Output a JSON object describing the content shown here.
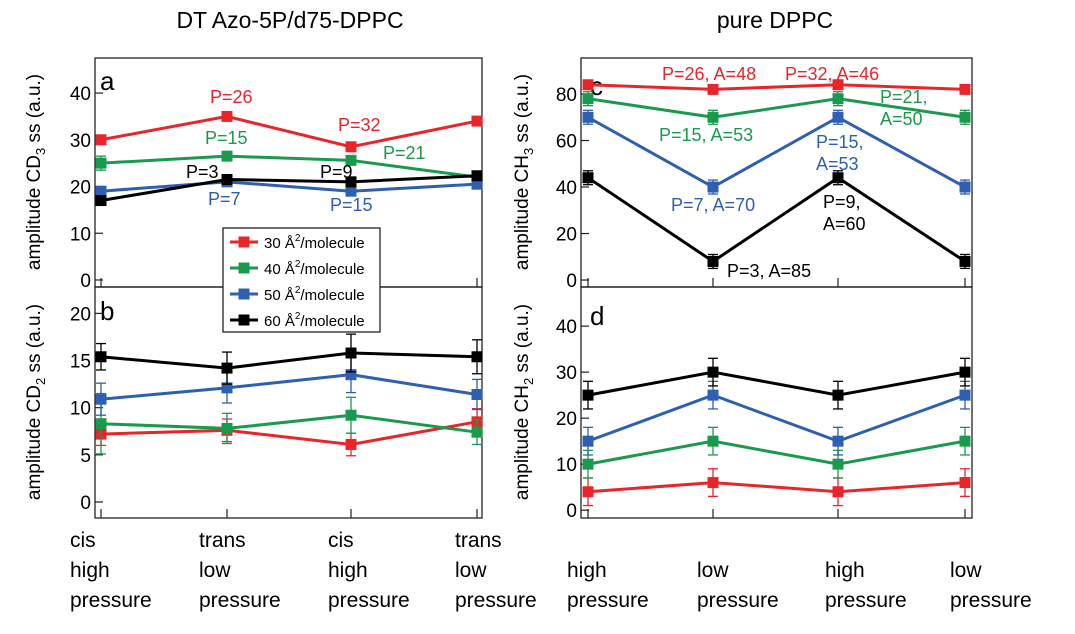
{
  "colors": {
    "30": "#e8262a",
    "40": "#1a9a4e",
    "50": "#2e5fb0",
    "60": "#000000"
  },
  "chart_data": [
    {
      "panel": "a",
      "type": "line",
      "group_title": "DT Azo-5P/d75-DPPC",
      "ylabel": "amplitude CD3 ss (a.u.)",
      "ylabel_main": "amplitude CD",
      "ylabel_sub": "3",
      "ylabel_tail": " ss (a.u.)",
      "yticks": [
        0,
        10,
        20,
        30,
        40
      ],
      "ylim": [
        -1.5,
        47.5
      ],
      "series": [
        {
          "name": "30 Å²/molecule",
          "key": "30",
          "values": [
            30,
            35,
            28.5,
            34
          ],
          "errors": [
            0.8,
            0.8,
            0.8,
            0.8
          ]
        },
        {
          "name": "40 Å²/molecule",
          "key": "40",
          "values": [
            25,
            26.5,
            25.6,
            22
          ],
          "errors": [
            1.5,
            0.8,
            0.8,
            0.8
          ]
        },
        {
          "name": "50 Å²/molecule",
          "key": "50",
          "values": [
            19,
            21,
            19,
            20.5
          ],
          "errors": [
            0.8,
            0.8,
            0.8,
            0.8
          ]
        },
        {
          "name": "60 Å²/molecule",
          "key": "60",
          "values": [
            17,
            21.5,
            21,
            22.3
          ],
          "errors": [
            0.8,
            0.8,
            0.8,
            0.8
          ]
        }
      ],
      "annotations": [
        {
          "key": "30",
          "text": "P=26"
        },
        {
          "key": "30",
          "text": "P=32"
        },
        {
          "key": "40",
          "text": "P=15"
        },
        {
          "key": "40",
          "text": "P=21"
        },
        {
          "key": "60",
          "text": "P=3"
        },
        {
          "key": "60",
          "text": "P=9"
        },
        {
          "key": "50",
          "text": "P=7"
        },
        {
          "key": "50",
          "text": "P=15"
        }
      ]
    },
    {
      "panel": "b",
      "type": "line",
      "ylabel": "amplitude CD2 ss (a.u.)",
      "ylabel_main": "amplitude CD",
      "ylabel_sub": "2",
      "ylabel_tail": " ss (a.u.)",
      "yticks": [
        0,
        5,
        10,
        15,
        20
      ],
      "ylim": [
        -1.7,
        22.8
      ],
      "categories": [
        [
          "cis",
          "high",
          "pressure"
        ],
        [
          "trans",
          "low",
          "pressure"
        ],
        [
          "cis",
          "high",
          "pressure"
        ],
        [
          "trans",
          "low",
          "pressure"
        ]
      ],
      "series": [
        {
          "name": "30 Å²/molecule",
          "key": "30",
          "values": [
            7.2,
            7.6,
            6.1,
            8.5
          ],
          "errors": [
            1.2,
            1.2,
            1.2,
            1.4
          ]
        },
        {
          "name": "40 Å²/molecule",
          "key": "40",
          "values": [
            8.3,
            7.8,
            9.2,
            7.4
          ],
          "errors": [
            3.2,
            1.6,
            1.9,
            1.3
          ]
        },
        {
          "name": "50 Å²/molecule",
          "key": "50",
          "values": [
            10.9,
            12.1,
            13.5,
            11.4
          ],
          "errors": [
            1.7,
            1.6,
            1.9,
            1.6
          ]
        },
        {
          "name": "60 Å²/molecule",
          "key": "60",
          "values": [
            15.4,
            14.2,
            15.8,
            15.4
          ],
          "errors": [
            1.4,
            1.7,
            2.0,
            1.8
          ]
        }
      ]
    },
    {
      "panel": "c",
      "type": "line",
      "group_title": "pure DPPC",
      "ylabel": "amplitude CH3 ss (a.u.)",
      "ylabel_main": "amplitude CH",
      "ylabel_sub": "3",
      "ylabel_tail": " ss (a.u.)",
      "yticks": [
        0,
        20,
        40,
        60,
        80
      ],
      "ylim": [
        -3,
        95.5
      ],
      "series": [
        {
          "name": "30 Å²/molecule",
          "key": "30",
          "values": [
            84,
            82,
            84,
            82
          ],
          "errors": [
            1.5,
            1.5,
            1.5,
            1.5
          ]
        },
        {
          "name": "40 Å²/molecule",
          "key": "40",
          "values": [
            78,
            70,
            78,
            70
          ],
          "errors": [
            3,
            3,
            3,
            3
          ]
        },
        {
          "name": "50 Å²/molecule",
          "key": "50",
          "values": [
            70,
            40,
            70,
            40
          ],
          "errors": [
            3,
            3,
            3,
            3
          ]
        },
        {
          "name": "60 Å²/molecule",
          "key": "60",
          "values": [
            44,
            8,
            44,
            8
          ],
          "errors": [
            3,
            3,
            3,
            3
          ]
        }
      ],
      "annotations": [
        {
          "key": "30",
          "text": "P=26, A=48"
        },
        {
          "key": "30",
          "text": "P=32, A=46"
        },
        {
          "key": "40",
          "text": "P=15, A=53"
        },
        {
          "key": "40",
          "text": "P=21,"
        },
        {
          "key": "40",
          "text": "A=50"
        },
        {
          "key": "50",
          "text": "P=15,"
        },
        {
          "key": "50",
          "text": "A=53"
        },
        {
          "key": "50",
          "text": "P=7, A=70"
        },
        {
          "key": "60",
          "text": "P=9,"
        },
        {
          "key": "60",
          "text": "A=60"
        },
        {
          "key": "60",
          "text": "P=3, A=85"
        }
      ]
    },
    {
      "panel": "d",
      "type": "line",
      "ylabel": "amplitude CH2 ss (a.u.)",
      "ylabel_main": "amplitude CH",
      "ylabel_sub": "2",
      "ylabel_tail": " ss (a.u.)",
      "yticks": [
        0,
        10,
        20,
        30,
        40
      ],
      "ylim": [
        -1.7,
        48.5
      ],
      "categories": [
        [
          "high",
          "pressure"
        ],
        [
          "low",
          "pressure"
        ],
        [
          "high",
          "pressure"
        ],
        [
          "low",
          "pressure"
        ]
      ],
      "series": [
        {
          "name": "30 Å²/molecule",
          "key": "30",
          "values": [
            4,
            6,
            4,
            6
          ],
          "errors": [
            3,
            3,
            3,
            3
          ]
        },
        {
          "name": "40 Å²/molecule",
          "key": "40",
          "values": [
            10,
            15,
            10,
            15
          ],
          "errors": [
            3,
            3,
            3,
            3
          ]
        },
        {
          "name": "50 Å²/molecule",
          "key": "50",
          "values": [
            15,
            25,
            15,
            25
          ],
          "errors": [
            3,
            3,
            3,
            3
          ]
        },
        {
          "name": "60 Å²/molecule",
          "key": "60",
          "values": [
            25,
            30,
            25,
            30
          ],
          "errors": [
            3,
            3,
            3,
            3
          ]
        }
      ]
    }
  ],
  "legend": [
    {
      "key": "30",
      "num": "30 Å",
      "sup": "2",
      "tail": "/molecule"
    },
    {
      "key": "40",
      "num": "40 Å",
      "sup": "2",
      "tail": "/molecule"
    },
    {
      "key": "50",
      "num": "50 Å",
      "sup": "2",
      "tail": "/molecule"
    },
    {
      "key": "60",
      "num": "60 Å",
      "sup": "2",
      "tail": "/molecule"
    }
  ]
}
